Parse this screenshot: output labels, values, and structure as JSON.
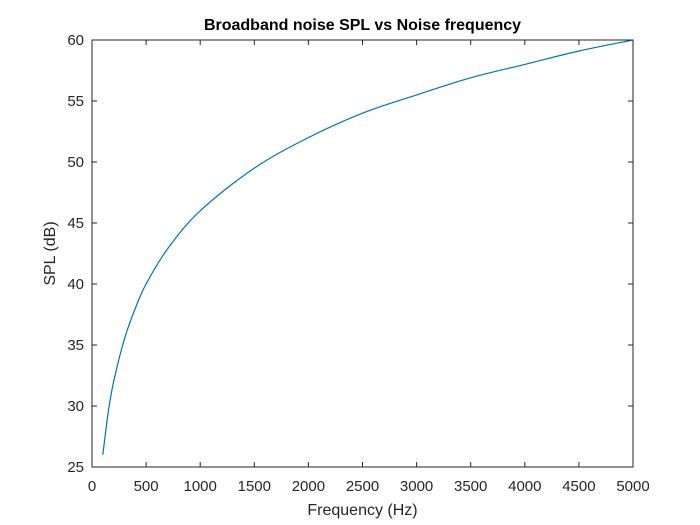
{
  "chart_data": {
    "type": "line",
    "title": "Broadband noise SPL vs Noise frequency",
    "xlabel": "Frequency (Hz)",
    "ylabel": "SPL (dB)",
    "xlim": [
      0,
      5000
    ],
    "ylim": [
      25,
      60
    ],
    "xticks": [
      0,
      500,
      1000,
      1500,
      2000,
      2500,
      3000,
      3500,
      4000,
      4500,
      5000
    ],
    "yticks": [
      25,
      30,
      35,
      40,
      45,
      50,
      55,
      60
    ],
    "grid": false,
    "legend": "none",
    "series": [
      {
        "color": "#0072bd",
        "x": [
          100,
          150,
          200,
          300,
          400,
          500,
          700,
          1000,
          1500,
          2000,
          2500,
          3000,
          3500,
          4000,
          4500,
          5000
        ],
        "y": [
          26.0,
          29.5,
          32.0,
          35.5,
          38.0,
          40.0,
          42.9,
          46.0,
          49.5,
          52.0,
          54.0,
          55.5,
          56.9,
          58.0,
          59.1,
          60.0
        ]
      }
    ]
  }
}
